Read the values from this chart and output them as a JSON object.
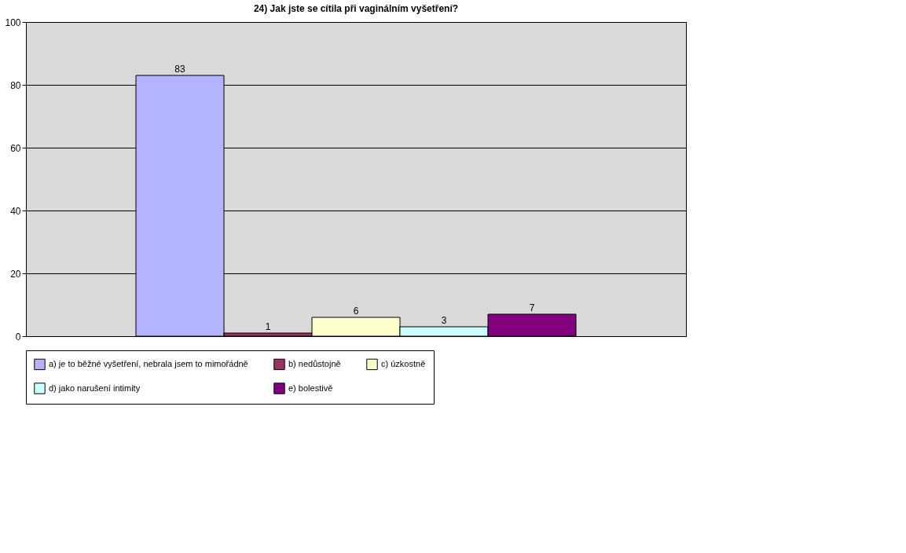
{
  "chart_data": {
    "type": "bar",
    "title": "24) Jak jste se cítila při vaginálním vyšetření?",
    "categories": [
      null
    ],
    "series": [
      {
        "name": "a) je to běžné vyšetření, nebrala jsem to mimořádně",
        "color": "#b3b3ff",
        "values": [
          83
        ]
      },
      {
        "name": "b) nedůstojně",
        "color": "#993366",
        "values": [
          1
        ]
      },
      {
        "name": "c) úzkostně",
        "color": "#ffffcc",
        "values": [
          6
        ]
      },
      {
        "name": "d) jako narušení intimity",
        "color": "#ccffff",
        "values": [
          3
        ]
      },
      {
        "name": "e) bolestivě",
        "color": "#800080",
        "values": [
          7
        ]
      }
    ],
    "ylim": [
      0,
      100
    ],
    "yticks": [
      0,
      20,
      40,
      60,
      80,
      100
    ],
    "grid": "y",
    "legend": "bottom",
    "data_labels": true,
    "tick_labels": "y"
  }
}
